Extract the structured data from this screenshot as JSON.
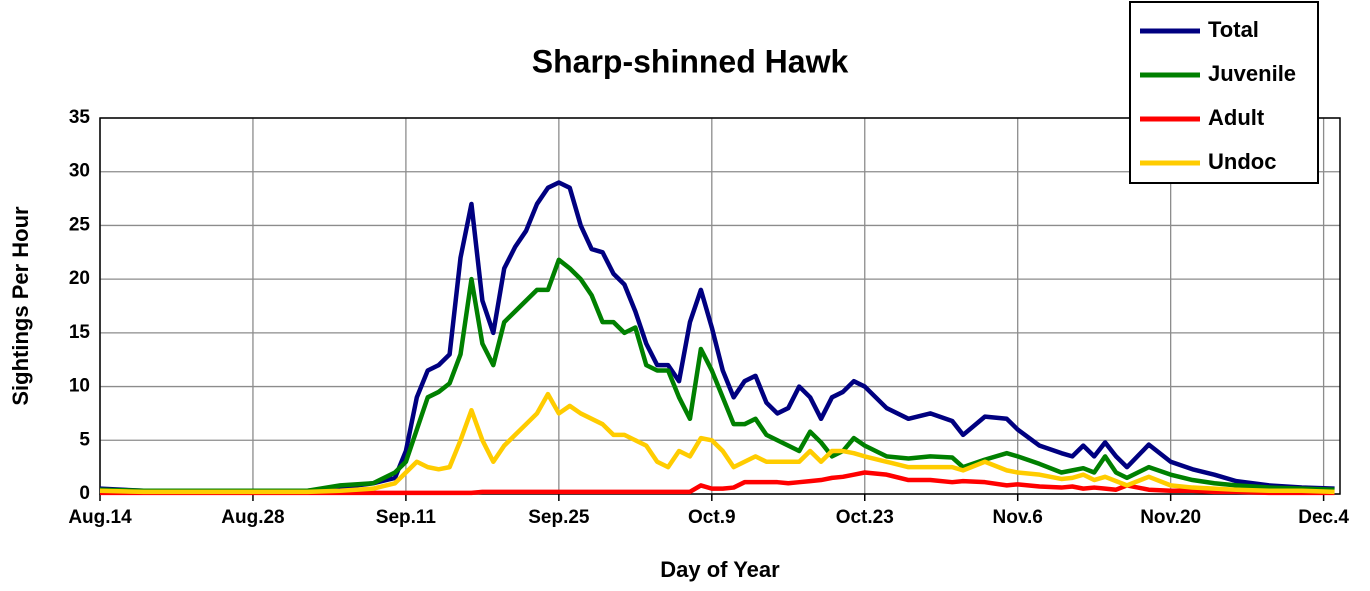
{
  "chart_data": {
    "type": "line",
    "title": "Sharp-shinned Hawk",
    "x_label": "Day of Year",
    "y_label": "Sightings Per Hour",
    "x": [
      226,
      230,
      235,
      240,
      245,
      248,
      251,
      253,
      254,
      255,
      256,
      257,
      258,
      259,
      260,
      261,
      262,
      263,
      264,
      265,
      266,
      267,
      268,
      269,
      270,
      271,
      272,
      273,
      274,
      275,
      276,
      277,
      278,
      279,
      280,
      281,
      282,
      283,
      284,
      285,
      286,
      287,
      288,
      289,
      290,
      291,
      292,
      293,
      294,
      295,
      296,
      298,
      300,
      302,
      304,
      305,
      307,
      309,
      310,
      312,
      314,
      315,
      316,
      317,
      318,
      319,
      320,
      322,
      324,
      326,
      328,
      330,
      333,
      336,
      339
    ],
    "series": [
      {
        "name": "Total",
        "color": "#000080",
        "values": [
          0.5,
          0.3,
          0.3,
          0.3,
          0.3,
          0.6,
          1,
          1.5,
          4,
          9,
          11.5,
          12,
          13,
          22,
          27,
          18,
          15,
          21,
          23,
          24.5,
          27,
          28.5,
          29,
          28.5,
          25,
          22.8,
          22.5,
          20.5,
          19.5,
          17,
          14,
          12,
          12,
          10.5,
          16,
          19,
          15.5,
          11.5,
          9,
          10.5,
          11,
          8.5,
          7.5,
          8,
          10,
          9,
          7,
          9,
          9.5,
          10.5,
          10,
          8,
          7,
          7.5,
          6.8,
          5.5,
          7.2,
          7,
          6,
          4.5,
          3.8,
          3.5,
          4.5,
          3.5,
          4.8,
          3.5,
          2.5,
          4.6,
          3,
          2.3,
          1.8,
          1.2,
          0.8,
          0.6,
          0.5
        ]
      },
      {
        "name": "Juvenile",
        "color": "#008000",
        "values": [
          0.4,
          0.3,
          0.3,
          0.3,
          0.3,
          0.8,
          1,
          2,
          3,
          6,
          9,
          9.5,
          10.3,
          13,
          20,
          14,
          12,
          16,
          17,
          18,
          19,
          19,
          21.8,
          21,
          20,
          18.5,
          16,
          16,
          15,
          15.5,
          12,
          11.5,
          11.5,
          9,
          7,
          13.5,
          11.5,
          9,
          6.5,
          6.5,
          7,
          5.5,
          5,
          4.5,
          4,
          5.8,
          4.8,
          3.5,
          4,
          5.2,
          4.5,
          3.5,
          3.3,
          3.5,
          3.4,
          2.5,
          3.2,
          3.8,
          3.5,
          2.8,
          2,
          2.2,
          2.4,
          2,
          3.5,
          2,
          1.5,
          2.5,
          1.8,
          1.3,
          1,
          0.8,
          0.6,
          0.5,
          0.4
        ]
      },
      {
        "name": "Adult",
        "color": "#ff0000",
        "values": [
          0.1,
          0.1,
          0.1,
          0.1,
          0.1,
          0.1,
          0.1,
          0.1,
          0.1,
          0.1,
          0.1,
          0.1,
          0.1,
          0.1,
          0.1,
          0.2,
          0.2,
          0.2,
          0.2,
          0.2,
          0.2,
          0.2,
          0.2,
          0.2,
          0.2,
          0.2,
          0.2,
          0.2,
          0.2,
          0.2,
          0.2,
          0.2,
          0.2,
          0.2,
          0.2,
          0.8,
          0.5,
          0.5,
          0.6,
          1.1,
          1.1,
          1.1,
          1.1,
          1,
          1.1,
          1.2,
          1.3,
          1.5,
          1.6,
          1.8,
          2,
          1.8,
          1.3,
          1.3,
          1.1,
          1.2,
          1.1,
          0.8,
          0.9,
          0.7,
          0.6,
          0.7,
          0.5,
          0.6,
          0.5,
          0.4,
          0.8,
          0.4,
          0.3,
          0.3,
          0.2,
          0.2,
          0.1,
          0.1,
          0.1
        ]
      },
      {
        "name": "Undoc",
        "color": "#ffcc00",
        "values": [
          0.3,
          0.2,
          0.2,
          0.2,
          0.2,
          0.3,
          0.5,
          1,
          2,
          3,
          2.5,
          2.3,
          2.5,
          5,
          7.8,
          5,
          3,
          4.5,
          5.5,
          6.5,
          7.5,
          9.3,
          7.5,
          8.2,
          7.5,
          7,
          6.5,
          5.5,
          5.5,
          5,
          4.5,
          3,
          2.5,
          4,
          3.5,
          5.2,
          5,
          4,
          2.5,
          3,
          3.5,
          3,
          3,
          3,
          3,
          4,
          3,
          4,
          4,
          3.8,
          3.5,
          3,
          2.5,
          2.5,
          2.5,
          2.2,
          3,
          2.2,
          2,
          1.8,
          1.4,
          1.5,
          1.8,
          1.3,
          1.6,
          1.2,
          0.8,
          1.6,
          0.8,
          0.6,
          0.5,
          0.4,
          0.3,
          0.3,
          0.2
        ]
      }
    ],
    "xlim": [
      226,
      339.5
    ],
    "ylim": [
      0,
      35
    ],
    "xticks": [
      {
        "value": 226,
        "label": "Aug.14"
      },
      {
        "value": 240,
        "label": "Aug.28"
      },
      {
        "value": 254,
        "label": "Sep.11"
      },
      {
        "value": 268,
        "label": "Sep.25"
      },
      {
        "value": 282,
        "label": "Oct.9"
      },
      {
        "value": 296,
        "label": "Oct.23"
      },
      {
        "value": 310,
        "label": "Nov.6"
      },
      {
        "value": 324,
        "label": "Nov.20"
      },
      {
        "value": 338,
        "label": "Dec.4"
      }
    ],
    "yticks": [
      0,
      5,
      10,
      15,
      20,
      25,
      30,
      35
    ],
    "grid": true,
    "legend": "upper right"
  }
}
